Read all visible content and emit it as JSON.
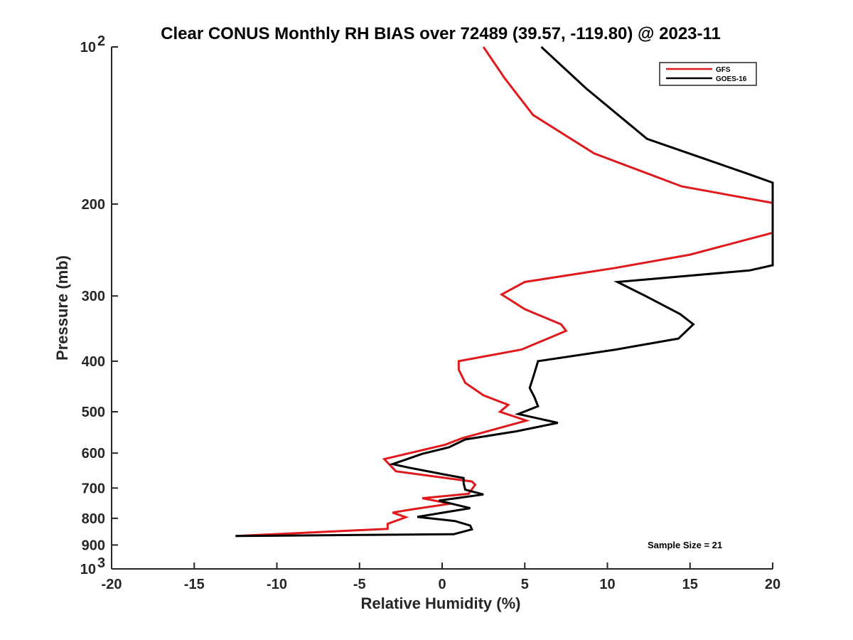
{
  "chart_data": {
    "type": "line",
    "title": "Clear CONUS Monthly RH BIAS over 72489 (39.57, -119.80) @ 2023-11",
    "xlabel": "Relative Humidity (%)",
    "ylabel": "Pressure (mb)",
    "xlim": [
      -20,
      20
    ],
    "ylim": [
      100,
      1000
    ],
    "yscale": "log",
    "y_reversed": true,
    "grid": false,
    "legend_position": "top-right",
    "x_ticks": [
      "-20",
      "-15",
      "-10",
      "-5",
      "0",
      "5",
      "10",
      "15",
      "20"
    ],
    "x_tick_values": [
      -20,
      -15,
      -10,
      -5,
      0,
      5,
      10,
      15,
      20
    ],
    "y_ticks": [
      {
        "value": 200,
        "label": "200"
      },
      {
        "value": 300,
        "label": "300"
      },
      {
        "value": 400,
        "label": "400"
      },
      {
        "value": 500,
        "label": "500"
      },
      {
        "value": 600,
        "label": "600"
      },
      {
        "value": 700,
        "label": "700"
      },
      {
        "value": 800,
        "label": "800"
      },
      {
        "value": 900,
        "label": "900"
      }
    ],
    "y_ticks_power": [
      {
        "value": 100,
        "base": "10",
        "exp": "2"
      },
      {
        "value": 1000,
        "base": "10",
        "exp": "3"
      }
    ],
    "series": [
      {
        "name": "GFS",
        "color": "#e0191c",
        "points": [
          [
            2.5,
            100
          ],
          [
            3.8,
            115
          ],
          [
            5.5,
            135
          ],
          [
            9.2,
            160
          ],
          [
            14.5,
            185
          ],
          [
            20,
            199
          ],
          [
            20,
            227
          ],
          [
            15,
            250
          ],
          [
            10.5,
            265
          ],
          [
            5,
            282
          ],
          [
            3.6,
            298
          ],
          [
            5,
            318
          ],
          [
            7.2,
            340
          ],
          [
            7.5,
            350
          ],
          [
            4.8,
            380
          ],
          [
            1,
            400
          ],
          [
            1,
            415
          ],
          [
            1.4,
            440
          ],
          [
            2.5,
            465
          ],
          [
            4,
            485
          ],
          [
            3.5,
            500
          ],
          [
            5.1,
            520
          ],
          [
            1.2,
            562
          ],
          [
            0.2,
            578
          ],
          [
            -3.5,
            616
          ],
          [
            -2.8,
            650
          ],
          [
            1.8,
            680
          ],
          [
            2,
            690
          ],
          [
            1.6,
            718
          ],
          [
            -1.2,
            732
          ],
          [
            0.5,
            750
          ],
          [
            -1.7,
            768
          ],
          [
            -3,
            780
          ],
          [
            -2.2,
            796
          ],
          [
            -3.3,
            820
          ],
          [
            -3.3,
            838
          ],
          [
            -12.5,
            865
          ]
        ]
      },
      {
        "name": "GOES-16",
        "color": "#000000",
        "points": [
          [
            6,
            100
          ],
          [
            8.7,
            120
          ],
          [
            12.4,
            150
          ],
          [
            18.5,
            175
          ],
          [
            20,
            182
          ],
          [
            20,
            262
          ],
          [
            18.6,
            268
          ],
          [
            10.6,
            282
          ],
          [
            12.3,
            300
          ],
          [
            14.4,
            325
          ],
          [
            15.2,
            340
          ],
          [
            14.3,
            362
          ],
          [
            10.5,
            380
          ],
          [
            5.8,
            400
          ],
          [
            5.5,
            430
          ],
          [
            5.3,
            450
          ],
          [
            5.6,
            470
          ],
          [
            5.8,
            488
          ],
          [
            4.6,
            505
          ],
          [
            7,
            525
          ],
          [
            4.5,
            545
          ],
          [
            1.4,
            565
          ],
          [
            0.4,
            585
          ],
          [
            -1.2,
            602
          ],
          [
            -3,
            630
          ],
          [
            -2,
            640
          ],
          [
            0.2,
            660
          ],
          [
            1.3,
            670
          ],
          [
            1.3,
            685
          ],
          [
            1.4,
            705
          ],
          [
            2.5,
            720
          ],
          [
            -0.2,
            740
          ],
          [
            1.7,
            765
          ],
          [
            -1.5,
            795
          ],
          [
            0.8,
            810
          ],
          [
            1.7,
            826
          ],
          [
            1.8,
            840
          ],
          [
            0.7,
            858
          ],
          [
            -12.5,
            865
          ]
        ]
      }
    ],
    "annotation": "Sample Size = 21"
  }
}
